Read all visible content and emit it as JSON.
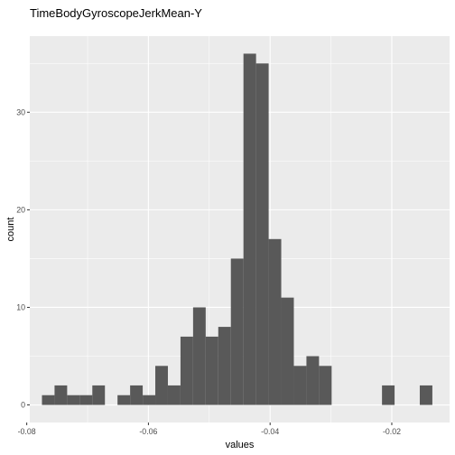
{
  "chart_data": {
    "type": "bar",
    "title": "TimeBodyGyroscopeJerkMean-Y",
    "xlabel": "values",
    "ylabel": "count",
    "xlim": [
      -0.0795,
      -0.0105
    ],
    "ylim": [
      -1.8,
      37.8
    ],
    "x_ticks": [
      -0.08,
      -0.06,
      -0.04,
      -0.02
    ],
    "x_tick_labels": [
      "-0.08",
      "-0.06",
      "-0.04",
      "-0.02"
    ],
    "y_ticks": [
      0,
      10,
      20,
      30
    ],
    "y_tick_labels": [
      "0",
      "10",
      "20",
      "30"
    ],
    "bin_width": 0.00207,
    "bin_starts": [
      -0.0775,
      -0.07543,
      -0.07336,
      -0.07129,
      -0.06922,
      -0.06715,
      -0.06508,
      -0.06301,
      -0.06094,
      -0.05887,
      -0.0568,
      -0.05473,
      -0.05266,
      -0.05059,
      -0.04852,
      -0.04645,
      -0.04438,
      -0.04231,
      -0.04024,
      -0.03817,
      -0.0361,
      -0.03403,
      -0.03196,
      -0.02989,
      -0.02782,
      -0.02575,
      -0.02368,
      -0.02161,
      -0.01954,
      -0.01747,
      -0.0154,
      -0.01333
    ],
    "counts": [
      1,
      2,
      1,
      1,
      2,
      0,
      1,
      2,
      1,
      4,
      2,
      7,
      10,
      7,
      8,
      15,
      36,
      35,
      17,
      11,
      4,
      5,
      4,
      0,
      0,
      0,
      0,
      2,
      0,
      0,
      2,
      0
    ],
    "grid": true,
    "colors": {
      "panel_background": "#ebebeb",
      "grid_major": "#ffffff",
      "bar_fill": "#595959"
    }
  }
}
